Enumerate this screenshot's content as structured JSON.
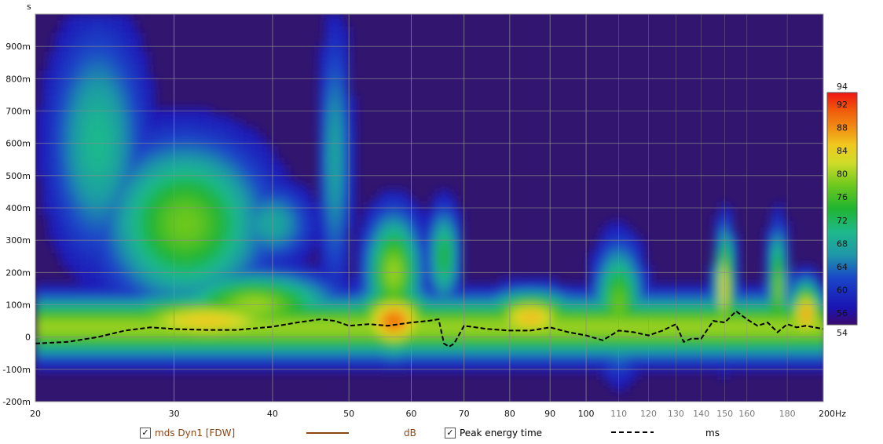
{
  "chart_data": {
    "type": "heatmap",
    "title": "",
    "y_unit_label": "s",
    "x_unit_label": "Hz",
    "x_scale": "log",
    "xlim": [
      20,
      200
    ],
    "ylim": [
      -0.2,
      1.0
    ],
    "x_ticks": [
      {
        "value": 20,
        "label": "20",
        "style": "major"
      },
      {
        "value": 30,
        "label": "30",
        "style": "major"
      },
      {
        "value": 40,
        "label": "40",
        "style": "major"
      },
      {
        "value": 50,
        "label": "50",
        "style": "major"
      },
      {
        "value": 60,
        "label": "60",
        "style": "major"
      },
      {
        "value": 70,
        "label": "70",
        "style": "major"
      },
      {
        "value": 80,
        "label": "80",
        "style": "major"
      },
      {
        "value": 90,
        "label": "90",
        "style": "major"
      },
      {
        "value": 100,
        "label": "100",
        "style": "major"
      },
      {
        "value": 110,
        "label": "110",
        "style": "minor"
      },
      {
        "value": 120,
        "label": "120",
        "style": "minor"
      },
      {
        "value": 130,
        "label": "130",
        "style": "minor"
      },
      {
        "value": 140,
        "label": "140",
        "style": "minor"
      },
      {
        "value": 150,
        "label": "150",
        "style": "minor"
      },
      {
        "value": 160,
        "label": "160",
        "style": "minor"
      },
      {
        "value": 180,
        "label": "180",
        "style": "minor"
      },
      {
        "value": 200,
        "label": "200Hz",
        "style": "major"
      }
    ],
    "y_ticks": [
      {
        "value": 0.9,
        "label": "900m"
      },
      {
        "value": 0.8,
        "label": "800m"
      },
      {
        "value": 0.7,
        "label": "700m"
      },
      {
        "value": 0.6,
        "label": "600m"
      },
      {
        "value": 0.5,
        "label": "500m"
      },
      {
        "value": 0.4,
        "label": "400m"
      },
      {
        "value": 0.3,
        "label": "300m"
      },
      {
        "value": 0.2,
        "label": "200m"
      },
      {
        "value": 0.1,
        "label": "100m"
      },
      {
        "value": 0.0,
        "label": "0"
      },
      {
        "value": -0.1,
        "label": "-100m"
      },
      {
        "value": -0.2,
        "label": "-200m"
      }
    ],
    "colorbar": {
      "min": 54,
      "max": 94,
      "tick_labels": [
        "92",
        "88",
        "84",
        "80",
        "76",
        "72",
        "68",
        "64",
        "60",
        "56"
      ],
      "stops": [
        {
          "value": 54,
          "color": "#3a0a6e"
        },
        {
          "value": 57,
          "color": "#1a14b4"
        },
        {
          "value": 62,
          "color": "#1a46c8"
        },
        {
          "value": 66,
          "color": "#1e96a8"
        },
        {
          "value": 70,
          "color": "#1eb98c"
        },
        {
          "value": 74,
          "color": "#20b432"
        },
        {
          "value": 78,
          "color": "#6ec81e"
        },
        {
          "value": 82,
          "color": "#d2dc28"
        },
        {
          "value": 85,
          "color": "#f0c81e"
        },
        {
          "value": 88,
          "color": "#f08c14"
        },
        {
          "value": 91,
          "color": "#f05a0a"
        },
        {
          "value": 94,
          "color": "#f01414"
        }
      ]
    },
    "background_color": "#32156e",
    "grid": true,
    "blobs": [
      {
        "f": 24,
        "t": 0.6,
        "wf": 0.06,
        "wt": 0.35,
        "db": 70
      },
      {
        "f": 31,
        "t": 0.35,
        "wf": 0.1,
        "wt": 0.25,
        "db": 78
      },
      {
        "f": 33,
        "t": 0.05,
        "wf": 0.14,
        "wt": 0.08,
        "db": 85
      },
      {
        "f": 38,
        "t": 0.1,
        "wf": 0.1,
        "wt": 0.1,
        "db": 80
      },
      {
        "f": 40,
        "t": 0.35,
        "wf": 0.05,
        "wt": 0.12,
        "db": 68
      },
      {
        "f": 48,
        "t": 0.55,
        "wf": 0.02,
        "wt": 0.4,
        "db": 68
      },
      {
        "f": 57,
        "t": 0.05,
        "wf": 0.05,
        "wt": 0.1,
        "db": 90
      },
      {
        "f": 57,
        "t": 0.2,
        "wf": 0.035,
        "wt": 0.18,
        "db": 80
      },
      {
        "f": 66,
        "t": 0.25,
        "wf": 0.02,
        "wt": 0.15,
        "db": 74
      },
      {
        "f": 85,
        "t": 0.06,
        "wf": 0.06,
        "wt": 0.08,
        "db": 86
      },
      {
        "f": 110,
        "t": 0.1,
        "wf": 0.03,
        "wt": 0.18,
        "db": 78
      },
      {
        "f": 150,
        "t": 0.15,
        "wf": 0.012,
        "wt": 0.18,
        "db": 84
      },
      {
        "f": 175,
        "t": 0.15,
        "wf": 0.012,
        "wt": 0.18,
        "db": 80
      },
      {
        "f": 190,
        "t": 0.07,
        "wf": 0.02,
        "wt": 0.1,
        "db": 88
      }
    ],
    "series": [
      {
        "name": "Peak energy time",
        "style": "dashed",
        "color": "#000000",
        "x": [
          20,
          22,
          24,
          26,
          28,
          30,
          33,
          36,
          40,
          43,
          46,
          48,
          50,
          53,
          56,
          60,
          63,
          65,
          66,
          67,
          68,
          70,
          75,
          80,
          85,
          90,
          95,
          100,
          105,
          110,
          115,
          120,
          125,
          130,
          133,
          136,
          140,
          145,
          150,
          155,
          160,
          165,
          170,
          175,
          180,
          185,
          190,
          195,
          200
        ],
        "y": [
          -0.02,
          -0.015,
          0.0,
          0.02,
          0.03,
          0.025,
          0.022,
          0.022,
          0.032,
          0.045,
          0.055,
          0.05,
          0.035,
          0.04,
          0.035,
          0.045,
          0.05,
          0.055,
          -0.02,
          -0.03,
          -0.02,
          0.035,
          0.025,
          0.02,
          0.02,
          0.03,
          0.015,
          0.005,
          -0.01,
          0.02,
          0.015,
          0.005,
          0.02,
          0.04,
          -0.015,
          -0.005,
          -0.005,
          0.05,
          0.045,
          0.08,
          0.055,
          0.035,
          0.045,
          0.015,
          0.04,
          0.03,
          0.035,
          0.03,
          0.025
        ]
      }
    ]
  },
  "legend": {
    "mds": {
      "label": "mds Dyn1 [FDW]",
      "unit": "dB",
      "checked": true,
      "line_color": "#8b4513"
    },
    "peak": {
      "label": "Peak energy time",
      "unit": "ms",
      "checked": true,
      "line_color": "#000000"
    }
  }
}
